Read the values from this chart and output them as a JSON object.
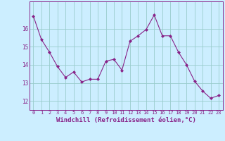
{
  "x": [
    0,
    1,
    2,
    3,
    4,
    5,
    6,
    7,
    8,
    9,
    10,
    11,
    12,
    13,
    14,
    15,
    16,
    17,
    18,
    19,
    20,
    21,
    22,
    23
  ],
  "y": [
    16.7,
    15.4,
    14.7,
    13.9,
    13.3,
    13.6,
    13.05,
    13.2,
    13.2,
    14.2,
    14.3,
    13.7,
    15.3,
    15.6,
    15.95,
    16.75,
    15.6,
    15.6,
    14.7,
    14.0,
    13.1,
    12.55,
    12.15,
    12.3
  ],
  "line_color": "#882288",
  "marker": "D",
  "marker_size": 2.0,
  "bg_color": "#cceeff",
  "grid_color": "#99cccc",
  "xlabel": "Windchill (Refroidissement éolien,°C)",
  "xlabel_fontsize": 6.5,
  "ylim": [
    11.5,
    17.5
  ],
  "xlim": [
    -0.5,
    23.5
  ],
  "ytick_labels": [
    "12",
    "13",
    "14",
    "15",
    "16"
  ],
  "ytick_values": [
    12,
    13,
    14,
    15,
    16
  ],
  "xtick_labels": [
    "0",
    "1",
    "2",
    "3",
    "4",
    "5",
    "6",
    "7",
    "8",
    "9",
    "10",
    "11",
    "12",
    "13",
    "14",
    "15",
    "16",
    "17",
    "18",
    "19",
    "20",
    "21",
    "22",
    "23"
  ]
}
